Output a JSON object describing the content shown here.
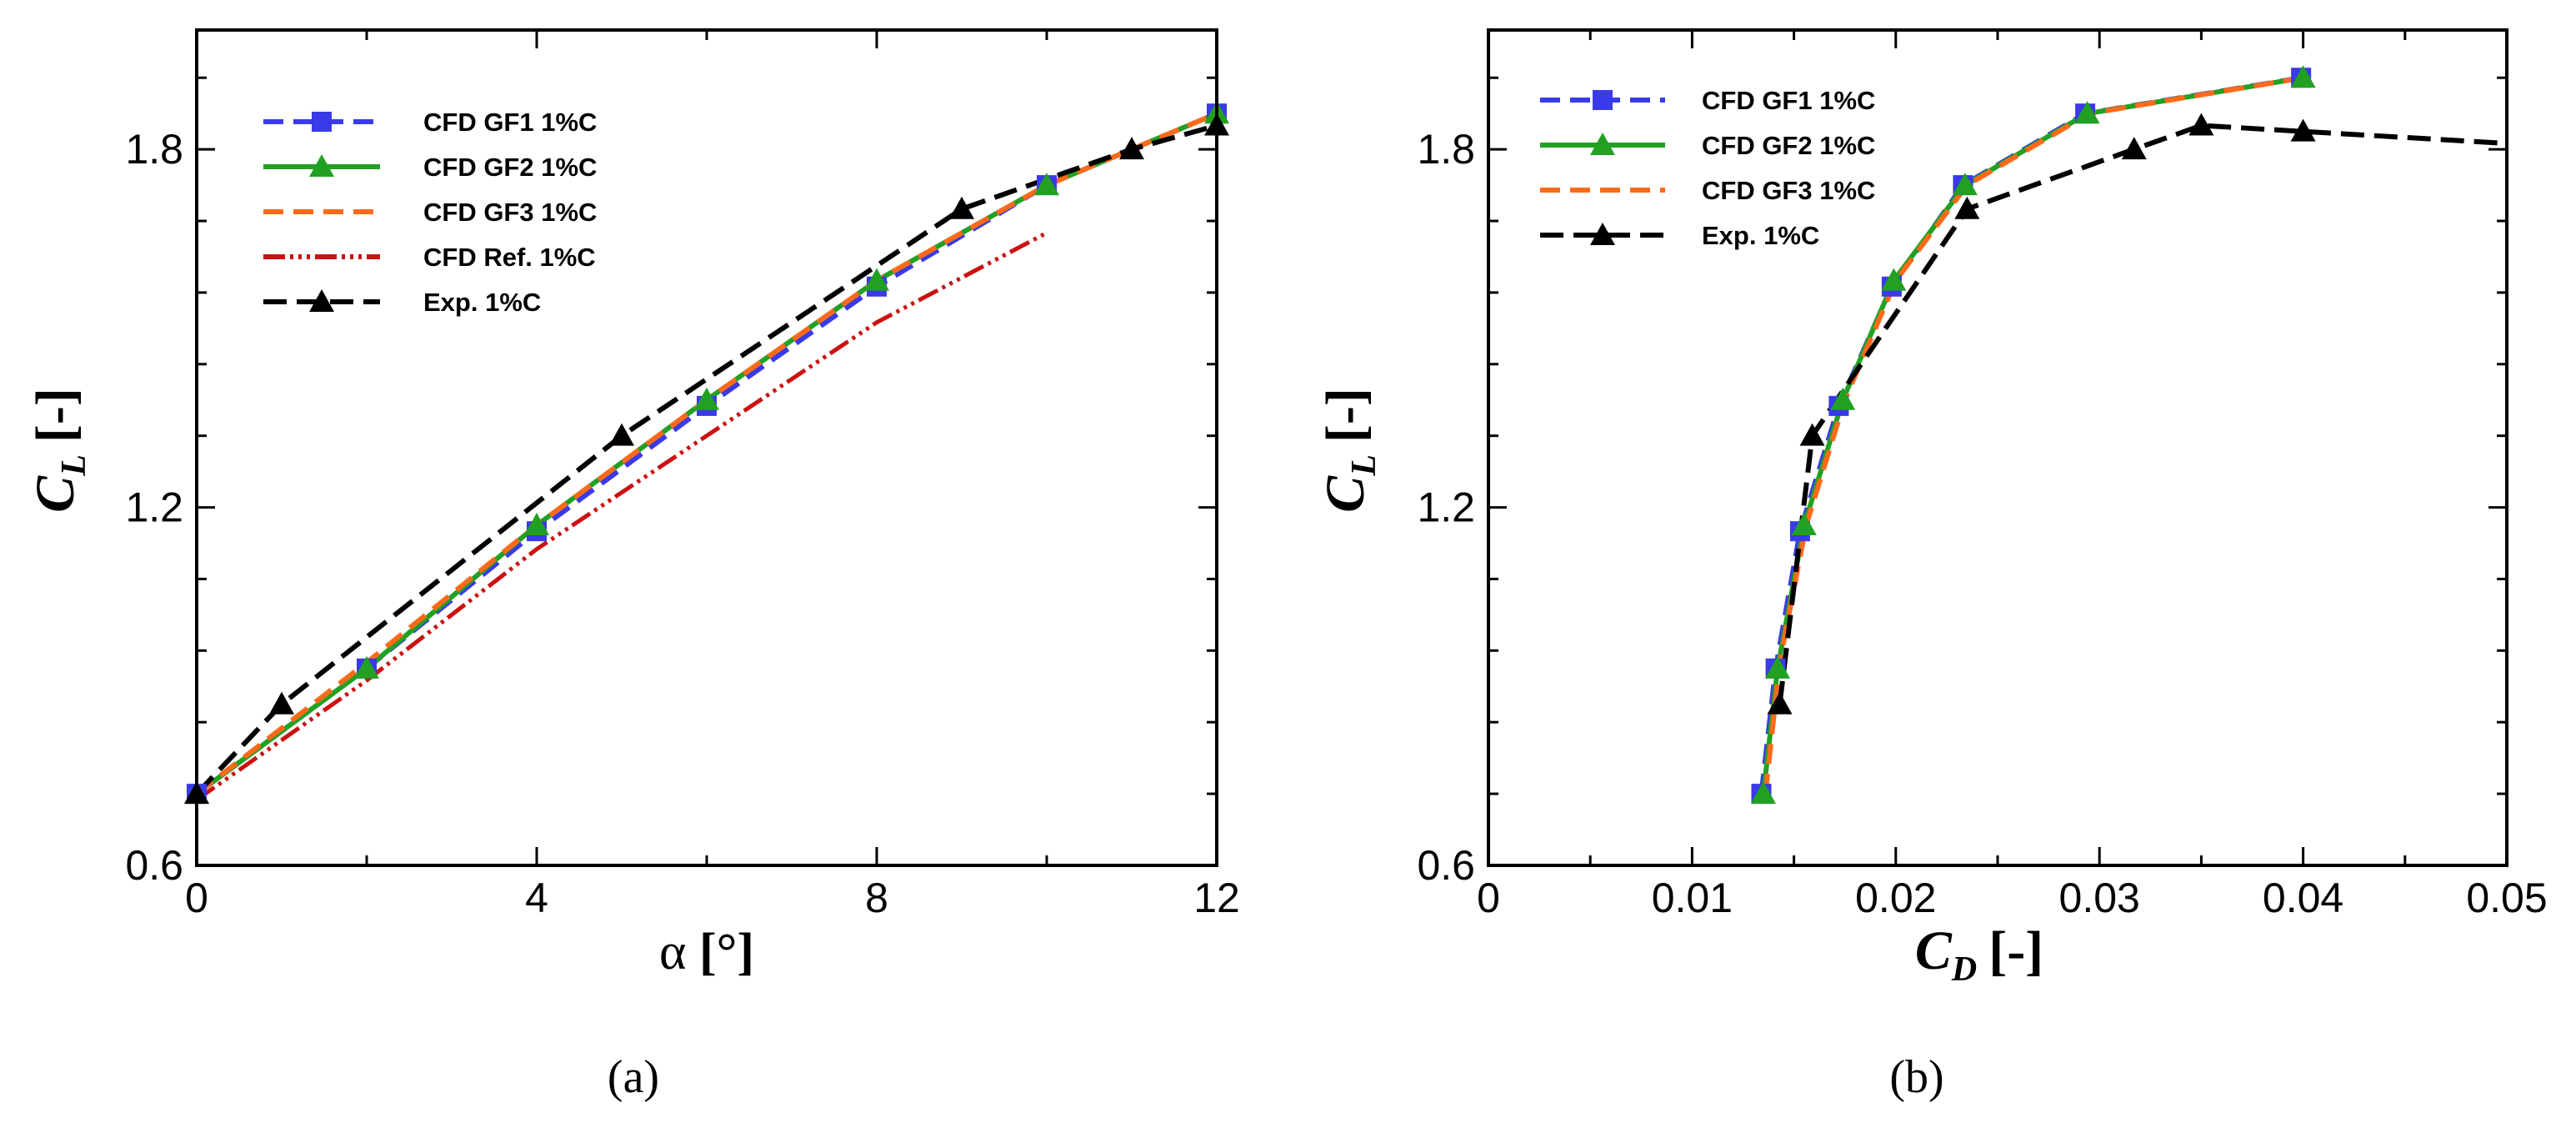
{
  "chart_data": [
    {
      "type": "line",
      "panel": "a",
      "caption": "(a)",
      "xlabel_symbol": "α",
      "xlabel_unit": "[°]",
      "ylabel_symbol": "C",
      "ylabel_sub": "L",
      "ylabel_unit": "[-]",
      "xlim": [
        0,
        12
      ],
      "ylim": [
        0.6,
        2.0
      ],
      "xticks": [
        0,
        4,
        8,
        12
      ],
      "xtick_labels": [
        "0",
        "4",
        "8",
        "12"
      ],
      "xminor": [
        2,
        6,
        10
      ],
      "yticks": [
        0.6,
        1.2,
        1.8
      ],
      "ytick_labels": [
        "0.6",
        "1.2",
        "1.8"
      ],
      "yminor": [
        0.72,
        0.84,
        0.96,
        1.08,
        1.32,
        1.44,
        1.56,
        1.68,
        1.92
      ],
      "legend_position": "top-left",
      "series": [
        {
          "name": "CFD GF1 1%C",
          "color": "#3a3ae8",
          "dash": "24 12",
          "marker": "square",
          "x": [
            0,
            2,
            4,
            6,
            8,
            10,
            12
          ],
          "y": [
            0.72,
            0.93,
            1.16,
            1.37,
            1.57,
            1.74,
            1.86
          ]
        },
        {
          "name": "CFD GF2 1%C",
          "color": "#22a022",
          "dash": "",
          "marker": "triangle",
          "x": [
            0,
            2,
            4,
            6,
            8,
            10,
            12
          ],
          "y": [
            0.72,
            0.93,
            1.17,
            1.38,
            1.58,
            1.74,
            1.86
          ]
        },
        {
          "name": "CFD GF3 1%C",
          "color": "#ff6a1a",
          "dash": "24 12",
          "marker": "none",
          "x": [
            0,
            2,
            4,
            6,
            8,
            10,
            12
          ],
          "y": [
            0.72,
            0.94,
            1.17,
            1.38,
            1.58,
            1.74,
            1.86
          ]
        },
        {
          "name": "CFD Ref. 1%C",
          "color": "#cc1111",
          "dash": "26 6 4 6 4 6 4 6",
          "marker": "none",
          "x": [
            0,
            2,
            4,
            6,
            8,
            10
          ],
          "y": [
            0.71,
            0.91,
            1.13,
            1.32,
            1.51,
            1.66
          ]
        },
        {
          "name": "Exp. 1%C",
          "color": "#000000",
          "dash": "28 12",
          "marker": "triangle",
          "x": [
            0,
            1,
            5,
            9,
            11,
            12
          ],
          "y": [
            0.72,
            0.87,
            1.32,
            1.7,
            1.8,
            1.84
          ]
        }
      ]
    },
    {
      "type": "line",
      "panel": "b",
      "caption": "(b)",
      "xlabel_symbol": "C",
      "xlabel_sub": "D",
      "xlabel_unit": "[-]",
      "ylabel_symbol": "C",
      "ylabel_sub": "L",
      "ylabel_unit": "[-]",
      "xlim": [
        0,
        0.05
      ],
      "ylim": [
        0.6,
        2.0
      ],
      "xticks": [
        0,
        0.01,
        0.02,
        0.03,
        0.04,
        0.05
      ],
      "xtick_labels": [
        "0",
        "0.01",
        "0.02",
        "0.03",
        "0.04",
        "0.05"
      ],
      "xminor": [
        0.005,
        0.015,
        0.025,
        0.035,
        0.045
      ],
      "yticks": [
        0.6,
        1.2,
        1.8
      ],
      "ytick_labels": [
        "0.6",
        "1.2",
        "1.8"
      ],
      "yminor": [
        0.72,
        0.84,
        0.96,
        1.08,
        1.32,
        1.44,
        1.56,
        1.68,
        1.92
      ],
      "legend_position": "top-left",
      "series": [
        {
          "name": "CFD GF1 1%C",
          "color": "#3a3ae8",
          "dash": "24 12",
          "marker": "square",
          "x": [
            0.0134,
            0.0141,
            0.0153,
            0.0172,
            0.0198,
            0.0233,
            0.0293,
            0.0399
          ],
          "y": [
            0.72,
            0.93,
            1.16,
            1.37,
            1.57,
            1.74,
            1.86,
            1.92
          ]
        },
        {
          "name": "CFD GF2 1%C",
          "color": "#22a022",
          "dash": "",
          "marker": "triangle",
          "x": [
            0.0135,
            0.0142,
            0.0155,
            0.0174,
            0.0199,
            0.0234,
            0.0294,
            0.04
          ],
          "y": [
            0.72,
            0.93,
            1.17,
            1.38,
            1.58,
            1.74,
            1.86,
            1.92
          ]
        },
        {
          "name": "CFD GF3 1%C",
          "color": "#ff6a1a",
          "dash": "24 12",
          "marker": "none",
          "x": [
            0.0136,
            0.0143,
            0.0156,
            0.0175,
            0.02,
            0.0235,
            0.0295,
            0.04
          ],
          "y": [
            0.72,
            0.94,
            1.17,
            1.38,
            1.58,
            1.74,
            1.86,
            1.92
          ]
        },
        {
          "name": "Exp. 1%C",
          "color": "#000000",
          "dash": "28 12",
          "marker": "triangle",
          "x": [
            0.0143,
            0.0159,
            0.0235,
            0.0317,
            0.035,
            0.04,
            0.05
          ],
          "y": [
            0.87,
            1.32,
            1.7,
            1.8,
            1.84,
            1.83,
            1.81
          ]
        }
      ]
    }
  ]
}
